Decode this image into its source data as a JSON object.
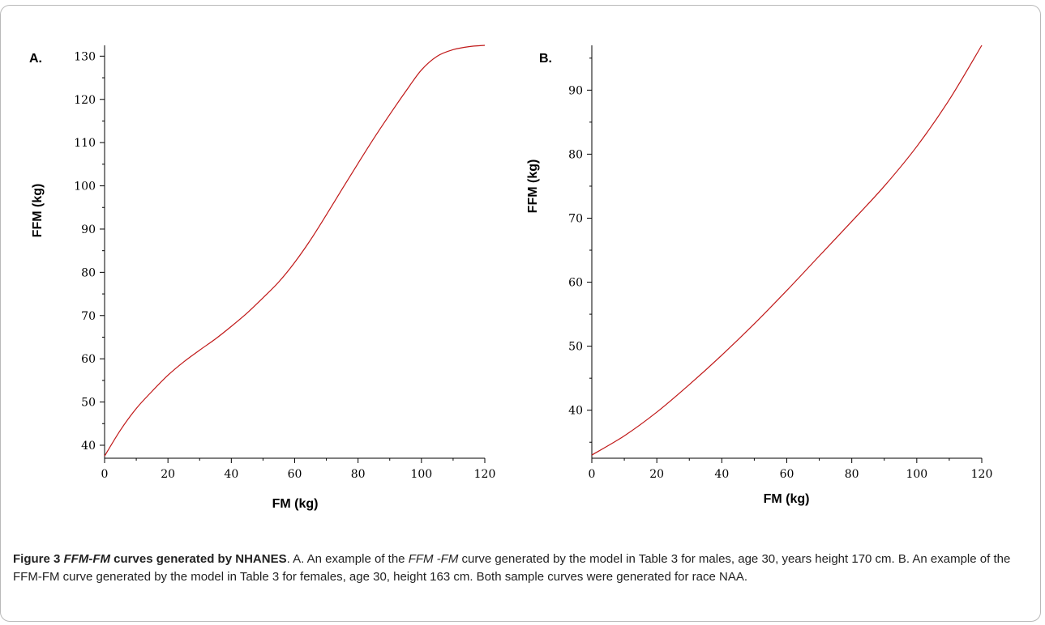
{
  "colors": {
    "curve": "#c01818",
    "axis": "#000000",
    "frame": "#b9b9b9"
  },
  "chart_data": [
    {
      "type": "line",
      "panel_label": "A.",
      "xlabel": "FM (kg)",
      "ylabel": "FFM (kg)",
      "xlim": [
        0,
        120
      ],
      "ylim": [
        37,
        132.5
      ],
      "xticks": [
        0,
        20,
        40,
        60,
        80,
        100,
        120
      ],
      "yticks": [
        40,
        50,
        60,
        70,
        80,
        90,
        100,
        110,
        120,
        130
      ],
      "grid": false,
      "x": [
        0,
        5,
        10,
        15,
        20,
        25,
        30,
        35,
        40,
        45,
        50,
        55,
        60,
        65,
        70,
        75,
        80,
        85,
        90,
        95,
        100,
        105,
        110,
        115,
        120
      ],
      "y": [
        37.5,
        43.5,
        48.5,
        52.5,
        56.2,
        59.3,
        62,
        64.6,
        67.5,
        70.6,
        74.1,
        77.8,
        82.3,
        87.5,
        93.3,
        99.3,
        105.2,
        111,
        116.5,
        121.8,
        126.8,
        130,
        131.5,
        132.2,
        132.5
      ],
      "series": [
        {
          "name": "",
          "values": [
            37.5,
            43.5,
            48.5,
            52.5,
            56.2,
            59.3,
            62,
            64.6,
            67.5,
            70.6,
            74.1,
            77.8,
            82.3,
            87.5,
            93.3,
            99.3,
            105.2,
            111,
            116.5,
            121.8,
            126.8,
            130,
            131.5,
            132.2,
            132.5
          ]
        }
      ]
    },
    {
      "type": "line",
      "panel_label": "B.",
      "xlabel": "FM (kg)",
      "ylabel": "FFM (kg)",
      "xlim": [
        0,
        120
      ],
      "ylim": [
        32.5,
        97
      ],
      "xticks": [
        0,
        20,
        40,
        60,
        80,
        100,
        120
      ],
      "yticks": [
        40,
        50,
        60,
        70,
        80,
        90
      ],
      "grid": false,
      "x": [
        0,
        10,
        20,
        30,
        40,
        50,
        60,
        70,
        80,
        90,
        100,
        110,
        120
      ],
      "y": [
        33,
        36,
        39.7,
        44,
        48.6,
        53.5,
        58.7,
        64.1,
        69.5,
        75,
        81.2,
        88.5,
        97
      ]
    }
  ],
  "caption": {
    "lead_pre": "Figure 3 ",
    "lead_em": "FFM-FM",
    "lead_post": " curves generated by NHANES",
    "t1": ". A. An example of the ",
    "em1": "FFM -FM",
    "t2": " curve generated by the model in Table 3 for males, age 30, years height 170 cm. B. An example of the FFM-FM curve generated by the model in Table 3 for females, age 30, height 163 cm. Both sample curves were generated for race NAA."
  }
}
